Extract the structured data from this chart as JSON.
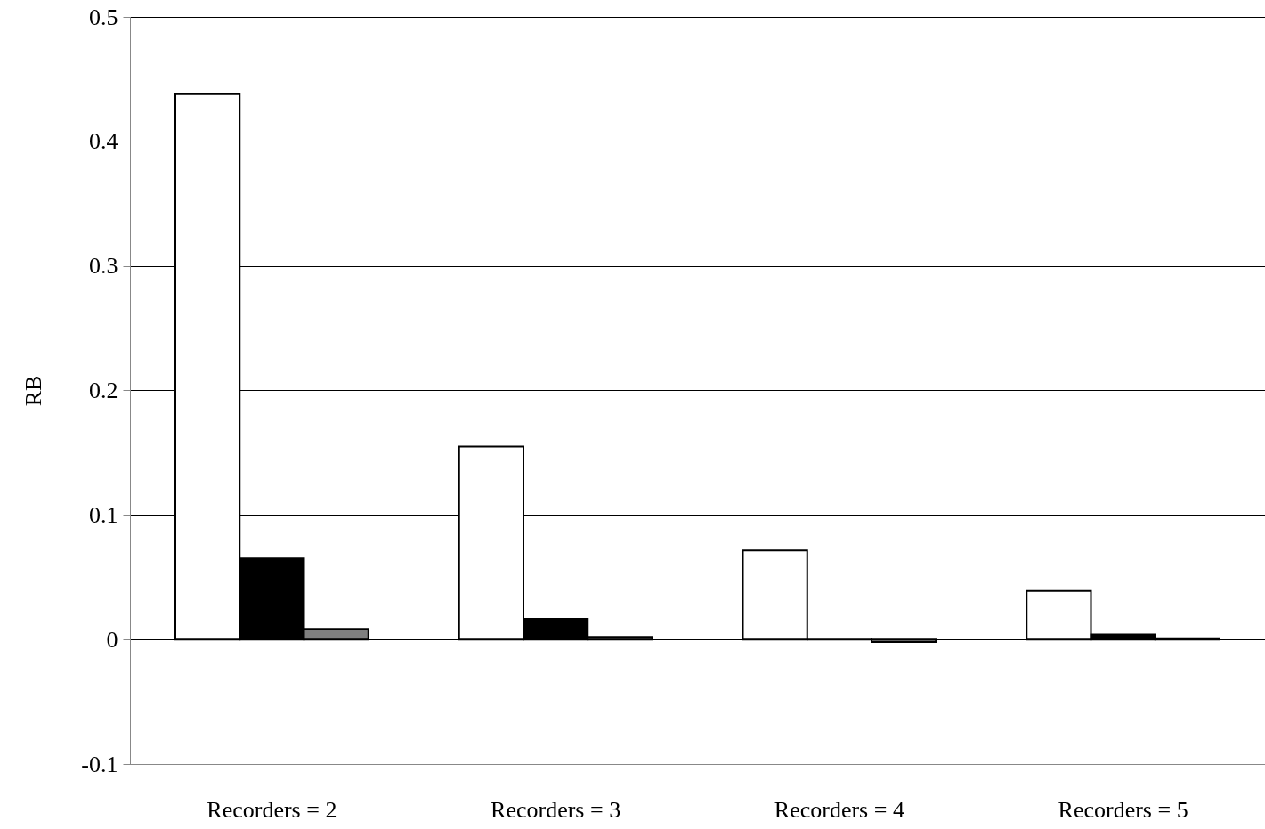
{
  "chart_data": {
    "type": "bar",
    "ylabel": "RB",
    "categories": [
      "Recorders = 2",
      "Recorders = 3",
      "Recorders = 4",
      "Recorders = 5"
    ],
    "series": [
      {
        "color": "#ffffff",
        "values": [
          0.438,
          0.155,
          0.0715,
          0.039
        ]
      },
      {
        "color": "#000000",
        "values": [
          0.065,
          0.0165,
          0,
          0.004
        ]
      },
      {
        "color": "#808080",
        "values": [
          0.0086,
          0.002,
          -0.002,
          0.001
        ]
      }
    ],
    "ylim": [
      -0.1,
      0.5
    ],
    "yticks": [
      -0.1,
      0,
      0.1,
      0.2,
      0.3,
      0.4,
      0.5
    ],
    "grid": "y"
  }
}
